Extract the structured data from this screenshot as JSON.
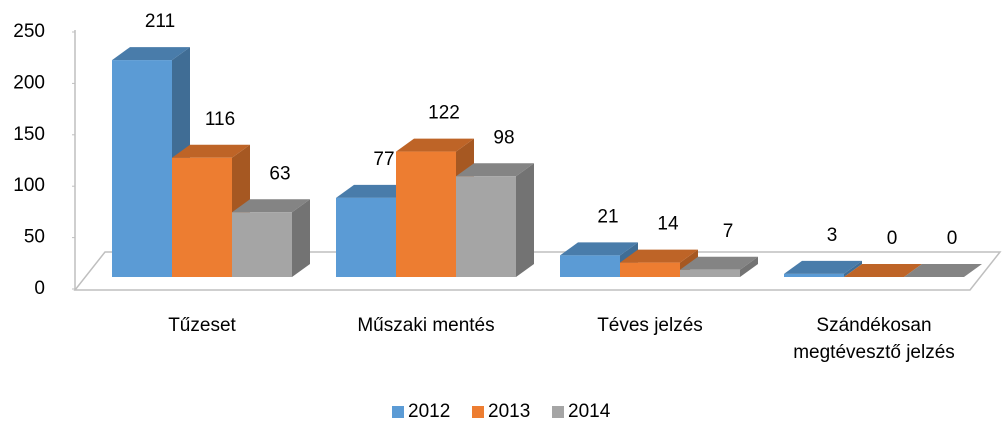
{
  "chart_data": {
    "type": "bar3d",
    "categories": [
      "Tűzeset",
      "Műszaki mentés",
      "Téves jelzés",
      "Szándékosan megtévesztő jelzés"
    ],
    "series": [
      {
        "name": "2012",
        "color": "#5b9bd5",
        "values": [
          211,
          77,
          21,
          3
        ]
      },
      {
        "name": "2013",
        "color": "#ed7d31",
        "values": [
          116,
          122,
          14,
          0
        ]
      },
      {
        "name": "2014",
        "color": "#a5a5a5",
        "values": [
          63,
          98,
          7,
          0
        ]
      }
    ],
    "ylim": [
      0,
      250
    ],
    "yticks": [
      0,
      50,
      100,
      150,
      200,
      250
    ],
    "grid": false,
    "legend": "bottom"
  }
}
